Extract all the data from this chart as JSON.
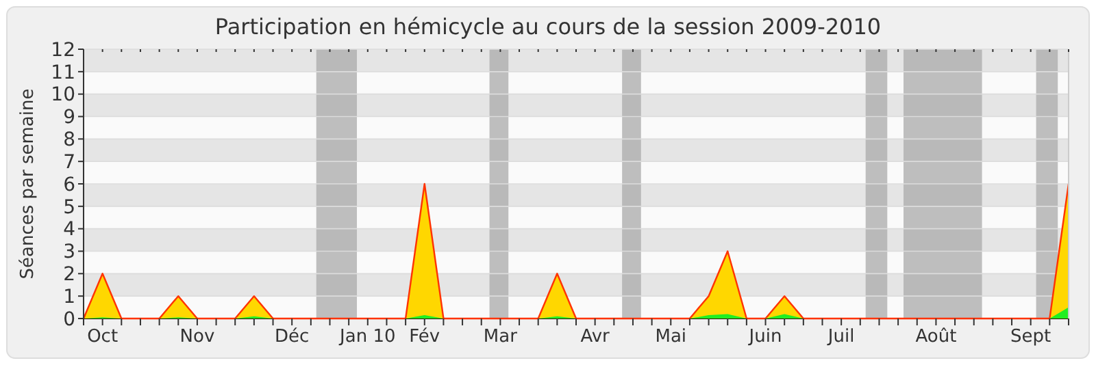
{
  "chart_data": {
    "type": "area",
    "title": "Participation en hémicycle au cours de la session 2009-2010",
    "ylabel": "Séances par semaine",
    "x": [
      "2009-09-28",
      "2009-10-05",
      "2009-10-12",
      "2009-10-19",
      "2009-10-26",
      "2009-11-02",
      "2009-11-09",
      "2009-11-16",
      "2009-11-23",
      "2009-11-30",
      "2009-12-07",
      "2009-12-14",
      "2009-12-21",
      "2009-12-28",
      "2010-01-04",
      "2010-01-11",
      "2010-01-18",
      "2010-01-25",
      "2010-02-01",
      "2010-02-08",
      "2010-02-15",
      "2010-02-22",
      "2010-03-01",
      "2010-03-08",
      "2010-03-15",
      "2010-03-22",
      "2010-03-29",
      "2010-04-05",
      "2010-04-12",
      "2010-04-19",
      "2010-04-26",
      "2010-05-03",
      "2010-05-10",
      "2010-05-17",
      "2010-05-24",
      "2010-05-31",
      "2010-06-07",
      "2010-06-14",
      "2010-06-21",
      "2010-06-28",
      "2010-07-05",
      "2010-07-12",
      "2010-07-19",
      "2010-07-26",
      "2010-08-02",
      "2010-08-09",
      "2010-08-16",
      "2010-08-23",
      "2010-08-30",
      "2010-09-06",
      "2010-09-13",
      "2010-09-20",
      "2010-09-27"
    ],
    "series": [
      {
        "type": "area",
        "color": "#ffd700",
        "values": [
          0,
          2,
          0,
          0,
          0,
          1,
          0,
          0,
          0,
          1,
          0,
          0,
          0,
          0,
          0,
          0,
          0,
          0,
          6,
          0,
          0,
          0,
          0,
          0,
          0,
          2,
          0,
          0,
          0,
          0,
          0,
          0,
          0,
          1,
          3,
          0,
          0,
          1,
          0,
          0,
          0,
          0,
          0,
          0,
          0,
          0,
          0,
          0,
          0,
          0,
          0,
          0,
          6
        ]
      },
      {
        "type": "area",
        "color": "#22ee22",
        "values": [
          0,
          0.05,
          0,
          0,
          0,
          0.05,
          0,
          0,
          0,
          0.1,
          0,
          0,
          0,
          0,
          0,
          0,
          0,
          0,
          0.15,
          0,
          0,
          0,
          0,
          0,
          0,
          0.1,
          0,
          0,
          0,
          0,
          0,
          0,
          0,
          0.15,
          0.2,
          0,
          0,
          0.2,
          0,
          0,
          0,
          0,
          0,
          0,
          0,
          0,
          0,
          0,
          0,
          0,
          0,
          0,
          0.5
        ]
      }
    ],
    "xlim": [
      "2009-09-28",
      "2010-09-27"
    ],
    "xticks": [
      {
        "value": "2009-09-28",
        "label": null
      },
      {
        "value": "2009-10-05",
        "label": "Oct"
      },
      {
        "value": "2009-10-12",
        "label": null
      },
      {
        "value": "2009-10-19",
        "label": null
      },
      {
        "value": "2009-10-26",
        "label": null
      },
      {
        "value": "2009-11-02",
        "label": null
      },
      {
        "value": "2009-11-09",
        "label": "Nov"
      },
      {
        "value": "2009-11-16",
        "label": null
      },
      {
        "value": "2009-11-23",
        "label": null
      },
      {
        "value": "2009-11-30",
        "label": null
      },
      {
        "value": "2009-12-07",
        "label": null
      },
      {
        "value": "2009-12-14",
        "label": "Déc"
      },
      {
        "value": "2009-12-21",
        "label": null
      },
      {
        "value": "2009-12-28",
        "label": null
      },
      {
        "value": "2010-01-04",
        "label": null
      },
      {
        "value": "2010-01-11",
        "label": "Jan 10"
      },
      {
        "value": "2010-01-18",
        "label": null
      },
      {
        "value": "2010-01-25",
        "label": null
      },
      {
        "value": "2010-02-01",
        "label": "Fév"
      },
      {
        "value": "2010-02-08",
        "label": null
      },
      {
        "value": "2010-02-15",
        "label": null
      },
      {
        "value": "2010-02-22",
        "label": null
      },
      {
        "value": "2010-03-01",
        "label": "Mar"
      },
      {
        "value": "2010-03-08",
        "label": null
      },
      {
        "value": "2010-03-15",
        "label": null
      },
      {
        "value": "2010-03-22",
        "label": null
      },
      {
        "value": "2010-03-29",
        "label": null
      },
      {
        "value": "2010-04-05",
        "label": "Avr"
      },
      {
        "value": "2010-04-12",
        "label": null
      },
      {
        "value": "2010-04-19",
        "label": null
      },
      {
        "value": "2010-04-26",
        "label": null
      },
      {
        "value": "2010-05-03",
        "label": "Mai"
      },
      {
        "value": "2010-05-10",
        "label": null
      },
      {
        "value": "2010-05-17",
        "label": null
      },
      {
        "value": "2010-05-24",
        "label": null
      },
      {
        "value": "2010-05-31",
        "label": null
      },
      {
        "value": "2010-06-07",
        "label": "Juin"
      },
      {
        "value": "2010-06-14",
        "label": null
      },
      {
        "value": "2010-06-21",
        "label": null
      },
      {
        "value": "2010-06-28",
        "label": null
      },
      {
        "value": "2010-07-05",
        "label": "Juil"
      },
      {
        "value": "2010-07-12",
        "label": null
      },
      {
        "value": "2010-07-19",
        "label": null
      },
      {
        "value": "2010-07-26",
        "label": null
      },
      {
        "value": "2010-08-02",
        "label": null
      },
      {
        "value": "2010-08-09",
        "label": "Août"
      },
      {
        "value": "2010-08-16",
        "label": null
      },
      {
        "value": "2010-08-23",
        "label": null
      },
      {
        "value": "2010-08-30",
        "label": null
      },
      {
        "value": "2010-09-06",
        "label": null
      },
      {
        "value": "2010-09-13",
        "label": "Sept"
      },
      {
        "value": "2010-09-20",
        "label": null
      },
      {
        "value": "2010-09-27",
        "label": null
      }
    ],
    "ylim": [
      0,
      12
    ],
    "yticks": [
      0,
      1,
      2,
      3,
      4,
      5,
      6,
      7,
      8,
      9,
      10,
      11,
      12
    ],
    "grid": "y",
    "bands": [
      {
        "axis": "x",
        "from": "2009-12-23",
        "to": "2010-01-07",
        "color": "#aaaaaa"
      },
      {
        "axis": "x",
        "from": "2010-02-25",
        "to": "2010-03-04",
        "color": "#aaaaaa"
      },
      {
        "axis": "x",
        "from": "2010-04-15",
        "to": "2010-04-22",
        "color": "#aaaaaa"
      },
      {
        "axis": "x",
        "from": "2010-07-14",
        "to": "2010-07-22",
        "color": "#aaaaaa"
      },
      {
        "axis": "x",
        "from": "2010-07-28",
        "to": "2010-08-26",
        "color": "#aaaaaa"
      },
      {
        "axis": "x",
        "from": "2010-09-15",
        "to": "2010-09-23",
        "color": "#aaaaaa"
      }
    ]
  }
}
